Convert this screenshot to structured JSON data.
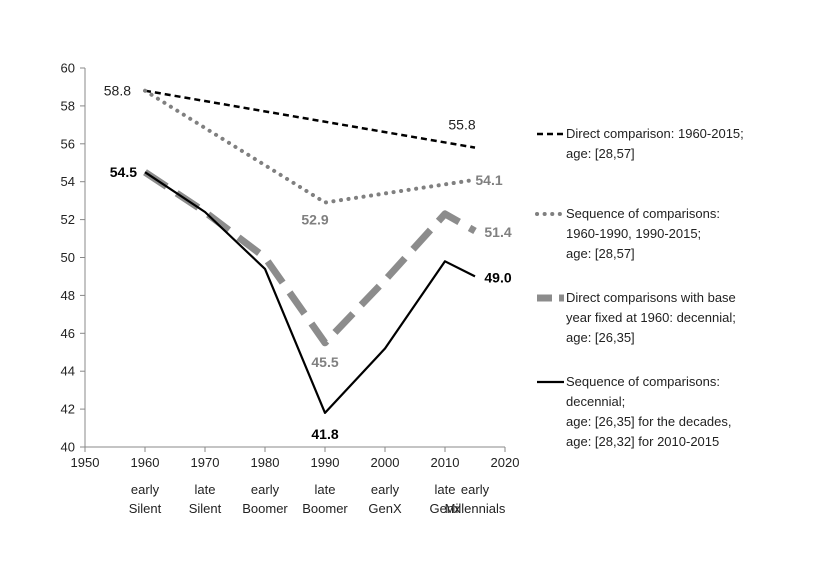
{
  "chart_data": {
    "type": "line",
    "xlim": [
      1950,
      2020
    ],
    "ylim": [
      40,
      60
    ],
    "x_ticks": [
      1950,
      1960,
      1970,
      1980,
      1990,
      2000,
      2010,
      2020
    ],
    "y_ticks": [
      40,
      42,
      44,
      46,
      48,
      50,
      52,
      54,
      56,
      58,
      60
    ],
    "x_tick_labels": [
      "1950",
      "1960",
      "1970",
      "1980",
      "1990",
      "2000",
      "2010",
      "2020"
    ],
    "y_tick_labels": [
      "40",
      "42",
      "44",
      "46",
      "48",
      "50",
      "52",
      "54",
      "56",
      "58",
      "60"
    ],
    "generation_labels": [
      {
        "x": 1960,
        "line1": "early",
        "line2": "Silent"
      },
      {
        "x": 1970,
        "line1": "late",
        "line2": "Silent"
      },
      {
        "x": 1980,
        "line1": "early",
        "line2": "Boomer"
      },
      {
        "x": 1990,
        "line1": "late",
        "line2": "Boomer"
      },
      {
        "x": 2000,
        "line1": "early",
        "line2": "GenX"
      },
      {
        "x": 2010,
        "line1": "late",
        "line2": "Genx"
      },
      {
        "x": 2015,
        "line1": "early",
        "line2": "Millennials"
      }
    ],
    "grid": false,
    "legend_position": "right",
    "series": [
      {
        "name": "Direct comparison: 1960-2015; age: [28,57]",
        "legend_lines": [
          "Direct comparison: 1960-2015;",
          "age: [28,57]"
        ],
        "style": "short-dash",
        "color": "#000000",
        "x": [
          1960,
          2015
        ],
        "y": [
          58.8,
          55.8
        ]
      },
      {
        "name": "Sequence of comparisons: 1960-1990, 1990-2015; age: [28,57]",
        "legend_lines": [
          "Sequence of comparisons:",
          "1960-1990, 1990-2015;",
          "age: [28,57]"
        ],
        "style": "dotted",
        "color": "#808080",
        "x": [
          1960,
          1990,
          2015
        ],
        "y": [
          58.8,
          52.9,
          54.1
        ]
      },
      {
        "name": "Direct comparisons with base year fixed at 1960: decennial; age: [26,35]",
        "legend_lines": [
          "Direct comparisons with base",
          "year fixed at 1960: decennial;",
          "age: [26,35]"
        ],
        "style": "long-dash",
        "color": "#8c8c8c",
        "x": [
          1960,
          1970,
          1980,
          1990,
          2000,
          2010,
          2015
        ],
        "y": [
          54.5,
          52.4,
          50.0,
          45.5,
          48.8,
          52.3,
          51.4
        ]
      },
      {
        "name": "Sequence of comparisons: decennial; age: [26,35] for the decades, age: [28,32] for 2010-2015",
        "legend_lines": [
          "Sequence of comparisons:",
          "decennial;",
          "age: [26,35] for the decades,",
          "age: [28,32]  for 2010-2015"
        ],
        "style": "solid",
        "color": "#000000",
        "x": [
          1960,
          1970,
          1980,
          1990,
          2000,
          2010,
          2015
        ],
        "y": [
          54.5,
          52.4,
          49.4,
          41.8,
          45.2,
          49.8,
          49.0
        ]
      }
    ],
    "data_labels": [
      {
        "text": "58.8",
        "x": 1960,
        "y": 58.8,
        "color": "#222222",
        "bold": false
      },
      {
        "text": "55.8",
        "x": 2015,
        "y": 55.8,
        "color": "#222222",
        "bold": false
      },
      {
        "text": "54.5",
        "x": 1960,
        "y": 54.5,
        "color": "#000000",
        "bold": true
      },
      {
        "text": "52.9",
        "x": 1990,
        "y": 52.9,
        "color": "#808080",
        "bold": true
      },
      {
        "text": "54.1",
        "x": 2015,
        "y": 54.1,
        "color": "#808080",
        "bold": true
      },
      {
        "text": "51.4",
        "x": 2015,
        "y": 51.4,
        "color": "#808080",
        "bold": true
      },
      {
        "text": "49.0",
        "x": 2015,
        "y": 49.0,
        "color": "#000000",
        "bold": true
      },
      {
        "text": "45.5",
        "x": 1990,
        "y": 45.5,
        "color": "#808080",
        "bold": true
      },
      {
        "text": "41.8",
        "x": 1990,
        "y": 41.8,
        "color": "#000000",
        "bold": true
      }
    ]
  }
}
